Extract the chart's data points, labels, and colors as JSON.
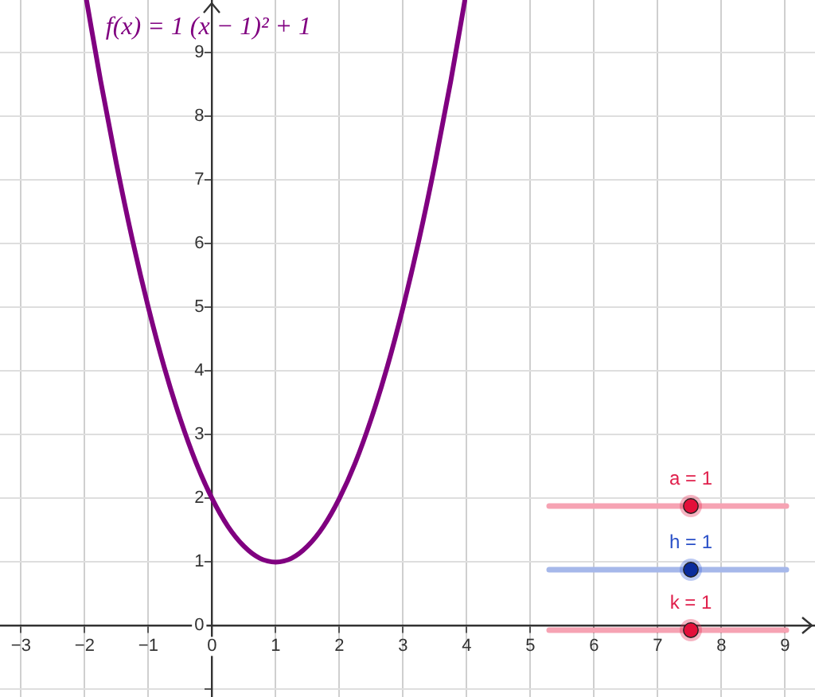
{
  "chart_data": {
    "type": "line",
    "x": [
      -1.97,
      -1.75,
      -1.5,
      -1.25,
      -1,
      -0.75,
      -0.5,
      -0.25,
      0,
      0.25,
      0.5,
      0.75,
      1,
      1.25,
      1.5,
      1.75,
      2,
      2.25,
      2.5,
      2.75,
      3,
      3.25,
      3.5,
      3.75,
      3.97
    ],
    "series": [
      {
        "name": "f(x) = 1 (x − 1)² + 1",
        "color": "#800080",
        "values": [
          9.82,
          8.56,
          7.25,
          6.06,
          5,
          4.06,
          3.25,
          2.56,
          2,
          1.56,
          1.25,
          1.06,
          1,
          1.06,
          1.25,
          1.56,
          2,
          2.56,
          3.25,
          4.06,
          5,
          6.06,
          7.25,
          8.56,
          9.82
        ]
      }
    ],
    "xlim": [
      -3.33,
      9.47
    ],
    "ylim": [
      -1.12,
      9.83
    ],
    "xticks": [
      {
        "value": -3,
        "label": "−3"
      },
      {
        "value": -2,
        "label": "−2"
      },
      {
        "value": -1,
        "label": "−1"
      },
      0,
      1,
      2,
      3,
      4,
      5,
      6,
      7,
      8,
      9
    ],
    "yticks": [
      {
        "value": -1,
        "label": null
      },
      0,
      1,
      2,
      3,
      4,
      5,
      6,
      7,
      8,
      9
    ],
    "grid": true,
    "annotations": [
      "a = 1",
      "h = 1",
      "k = 1"
    ]
  }
}
